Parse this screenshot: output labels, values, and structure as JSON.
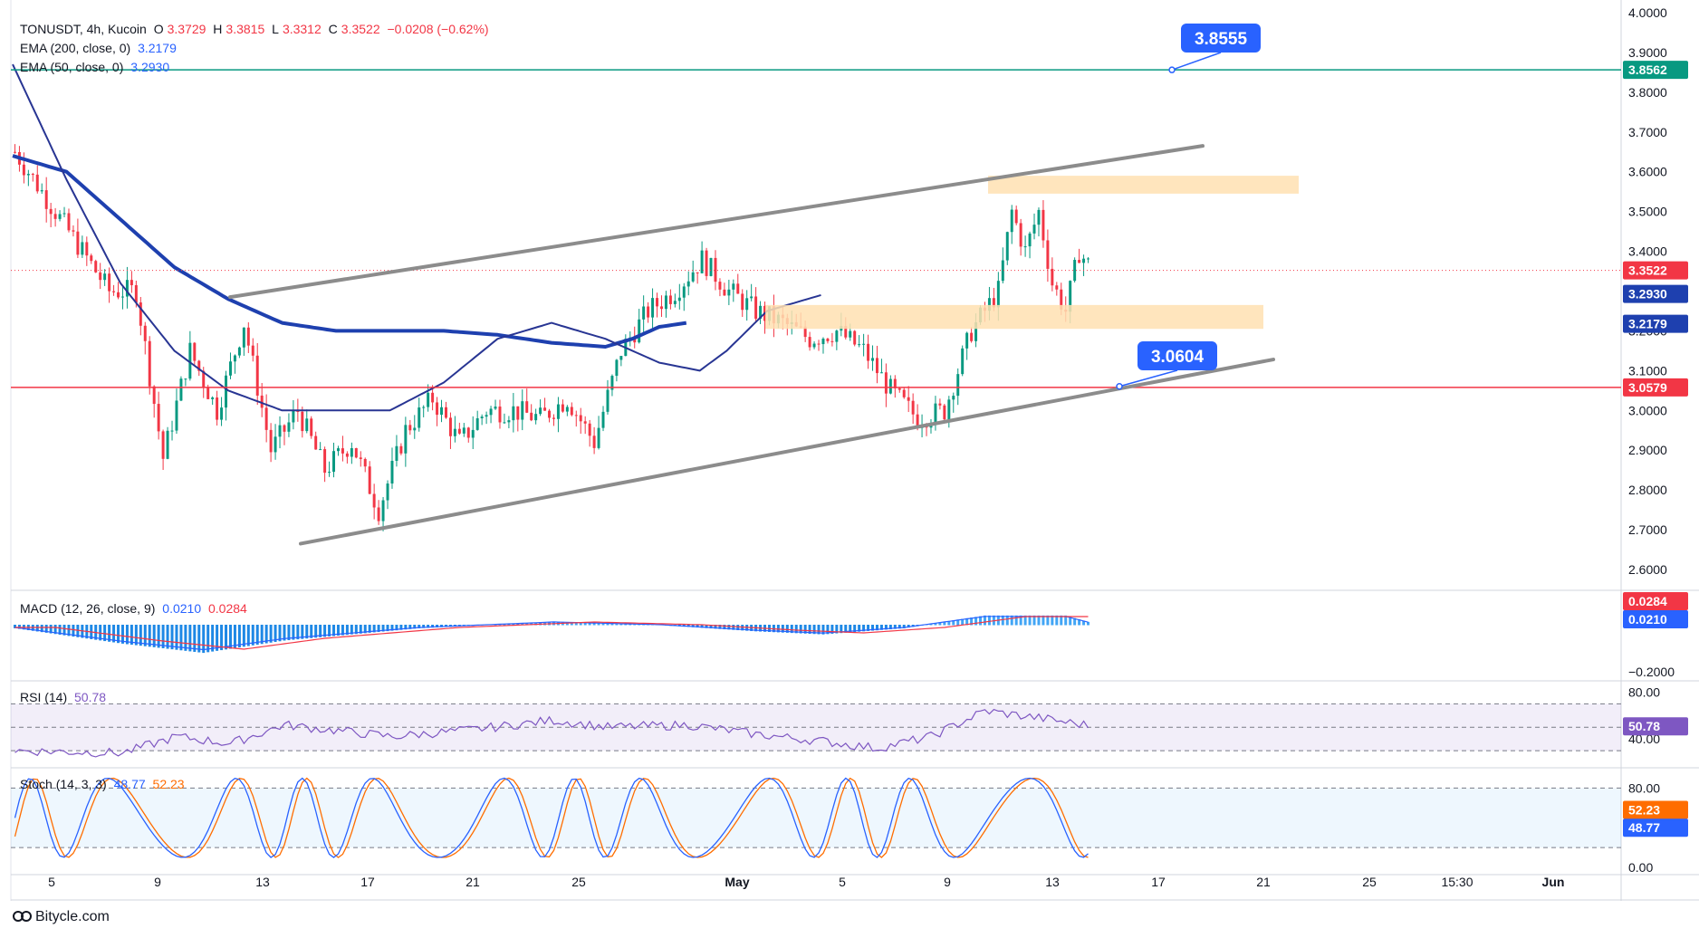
{
  "header": {
    "symbol": "TONUSDT, 4h, Kucoin",
    "open_label": "O",
    "open": "3.3729",
    "high_label": "H",
    "high": "3.3815",
    "low_label": "L",
    "low": "3.3312",
    "close_label": "C",
    "close": "3.3522",
    "change": "−0.0208 (−0.62%)"
  },
  "ema200": {
    "label": "EMA (200, close, 0)",
    "value": "3.2179",
    "color": "#1e3a8a"
  },
  "ema50": {
    "label": "EMA (50, close, 0)",
    "value": "3.2930",
    "color": "#283593"
  },
  "macd_legend": {
    "label": "MACD (12, 26, close, 9)",
    "macd": "0.0210",
    "signal": "0.0284"
  },
  "rsi_legend": {
    "label": "RSI (14)",
    "value": "50.78"
  },
  "stoch_legend": {
    "label": "Stoch (14, 3, 3)",
    "k": "48.77",
    "d": "52.23"
  },
  "watermark": "Bitycle.com",
  "colors": {
    "up": "#089981",
    "down": "#f23645",
    "ema": "#1e40af",
    "channel": "#8c8c8c",
    "zone": "#ffe0b2",
    "callout": "#2962ff",
    "resistance": "#089981",
    "support": "#f23645"
  },
  "chart_data": [
    {
      "type": "candlestick",
      "title": "TONUSDT, 4h, Kucoin",
      "x_ticks": [
        "5",
        "9",
        "13",
        "17",
        "21",
        "25",
        "May",
        "5",
        "9",
        "13",
        "17",
        "21",
        "25",
        "15:30",
        "Jun"
      ],
      "y_ticks": [
        "4.0000",
        "3.9000",
        "3.8000",
        "3.7000",
        "3.6000",
        "3.5000",
        "3.4000",
        "3.3000",
        "3.2000",
        "3.1000",
        "3.0000",
        "2.9000",
        "2.8000",
        "2.7000",
        "2.6000"
      ],
      "ylim": [
        2.58,
        4.0
      ],
      "price_path": [
        [
          0,
          3.65
        ],
        [
          4,
          3.45
        ],
        [
          7,
          3.3
        ],
        [
          9,
          3.3
        ],
        [
          11,
          2.88
        ],
        [
          13,
          3.15
        ],
        [
          15,
          3.0
        ],
        [
          17,
          3.22
        ],
        [
          19,
          2.9
        ],
        [
          21,
          3.0
        ],
        [
          23,
          2.85
        ],
        [
          25,
          2.92
        ],
        [
          27,
          2.75
        ],
        [
          29,
          2.95
        ],
        [
          31,
          3.03
        ],
        [
          33,
          2.92
        ],
        [
          35,
          3.0
        ],
        [
          37,
          3.0
        ],
        [
          39,
          2.98
        ],
        [
          41,
          3.03
        ],
        [
          43,
          2.92
        ],
        [
          45,
          3.15
        ],
        [
          47,
          3.25
        ],
        [
          49,
          3.3
        ],
        [
          51,
          3.38
        ],
        [
          53,
          3.3
        ],
        [
          55,
          3.25
        ],
        [
          57,
          3.22
        ],
        [
          59,
          3.18
        ],
        [
          61,
          3.2
        ],
        [
          63,
          3.15
        ],
        [
          65,
          3.05
        ],
        [
          67,
          2.98
        ],
        [
          69,
          3.0
        ],
        [
          71,
          3.2
        ],
        [
          73,
          3.3
        ],
        [
          74,
          3.5
        ],
        [
          75,
          3.4
        ],
        [
          76,
          3.5
        ],
        [
          77,
          3.32
        ],
        [
          78,
          3.25
        ],
        [
          79,
          3.4
        ],
        [
          80,
          3.35
        ]
      ],
      "ema200": [
        [
          0,
          3.64
        ],
        [
          4,
          3.6
        ],
        [
          8,
          3.48
        ],
        [
          12,
          3.36
        ],
        [
          16,
          3.28
        ],
        [
          20,
          3.22
        ],
        [
          24,
          3.2
        ],
        [
          28,
          3.2
        ],
        [
          32,
          3.2
        ],
        [
          36,
          3.19
        ],
        [
          40,
          3.17
        ],
        [
          44,
          3.16
        ],
        [
          46,
          3.18
        ],
        [
          48,
          3.21
        ],
        [
          50,
          3.22
        ]
      ],
      "ema50": [
        [
          0,
          3.87
        ],
        [
          4,
          3.58
        ],
        [
          8,
          3.32
        ],
        [
          12,
          3.15
        ],
        [
          16,
          3.05
        ],
        [
          20,
          3.0
        ],
        [
          24,
          3.0
        ],
        [
          28,
          3.0
        ],
        [
          32,
          3.07
        ],
        [
          36,
          3.18
        ],
        [
          40,
          3.22
        ],
        [
          44,
          3.18
        ],
        [
          48,
          3.12
        ],
        [
          51,
          3.1
        ],
        [
          53,
          3.15
        ],
        [
          56,
          3.25
        ],
        [
          60,
          3.29
        ]
      ],
      "horizontal_levels": [
        {
          "value": 3.8562,
          "label": "3.8562",
          "role": "resistance"
        },
        {
          "value": 3.0579,
          "label": "3.0579",
          "role": "support"
        }
      ],
      "callouts": [
        "3.8555",
        "3.0604"
      ],
      "price_labels": [
        "3.3522",
        "3.2930",
        "3.2179"
      ],
      "channel": {
        "upper": [
          [
            0.135,
            3.285
          ],
          [
            0.708,
            3.665
          ]
        ],
        "lower": [
          [
            0.176,
            2.665
          ],
          [
            0.75,
            3.128
          ]
        ]
      },
      "zones": [
        {
          "from": 3.545,
          "to": 3.59
        },
        {
          "from": 3.205,
          "to": 3.265
        }
      ]
    },
    {
      "type": "histogram",
      "title": "MACD (12, 26, close, 9)",
      "y_ticks": [
        "−0.2000"
      ],
      "price_labels": [
        "0.0284",
        "0.0210"
      ]
    },
    {
      "type": "line",
      "title": "RSI (14)",
      "y_ticks": [
        "80.00",
        "40.00"
      ],
      "levels": [
        70,
        50,
        30
      ],
      "ylim": [
        20,
        85
      ],
      "price_labels": [
        "50.78"
      ]
    },
    {
      "type": "line",
      "title": "Stoch (14, 3, 3)",
      "y_ticks": [
        "80.00",
        "50.00",
        "0.00"
      ],
      "levels": [
        80,
        20
      ],
      "ylim": [
        0,
        95
      ],
      "price_labels": [
        "52.23",
        "48.77"
      ]
    }
  ]
}
